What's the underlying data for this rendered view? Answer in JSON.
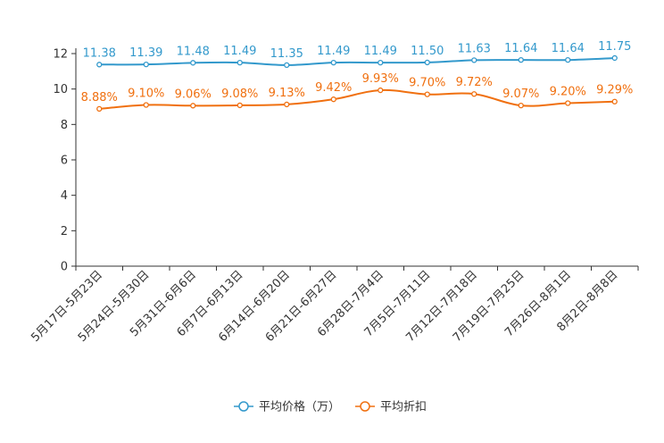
{
  "chart_data": {
    "type": "line",
    "title": "",
    "xlabel": "",
    "ylabel": "",
    "ylim": [
      0,
      12
    ],
    "yticks": [
      0,
      2,
      4,
      6,
      8,
      10,
      12
    ],
    "categories": [
      "5月17日-5月23日",
      "5月24日-5月30日",
      "5月31日-6月6日",
      "6月7日-6月13日",
      "6月14日-6月20日",
      "6月21日-6月27日",
      "6月28日-7月4日",
      "7月5日-7月11日",
      "7月12日-7月18日",
      "7月19日-7月25日",
      "7月26日-8月1日",
      "8月2日-8月8日"
    ],
    "series": [
      {
        "name": "平均价格（万）",
        "color": "#3399cc",
        "values": [
          11.38,
          11.39,
          11.48,
          11.49,
          11.35,
          11.49,
          11.49,
          11.5,
          11.63,
          11.64,
          11.64,
          11.75
        ],
        "labels": [
          "11.38",
          "11.39",
          "11.48",
          "11.49",
          "11.35",
          "11.49",
          "11.49",
          "11.50",
          "11.63",
          "11.64",
          "11.64",
          "11.75"
        ]
      },
      {
        "name": "平均折扣",
        "color": "#f07010",
        "values": [
          8.88,
          9.1,
          9.06,
          9.08,
          9.13,
          9.42,
          9.93,
          9.7,
          9.72,
          9.07,
          9.2,
          9.29
        ],
        "labels": [
          "8.88%",
          "9.10%",
          "9.06%",
          "9.08%",
          "9.13%",
          "9.42%",
          "9.93%",
          "9.70%",
          "9.72%",
          "9.07%",
          "9.20%",
          "9.29%"
        ]
      }
    ],
    "legend": "bottom-center"
  }
}
